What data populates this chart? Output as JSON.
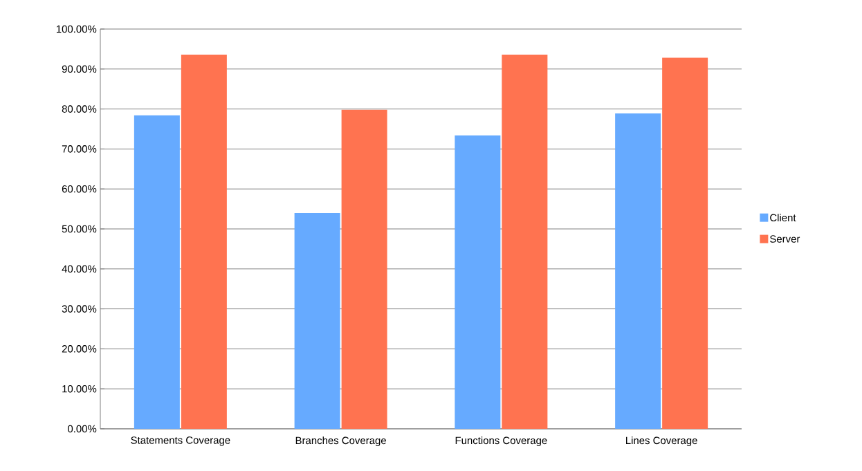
{
  "chart_data": {
    "type": "bar",
    "categories": [
      "Statements Coverage",
      "Branches Coverage",
      "Functions Coverage",
      "Lines Coverage"
    ],
    "series": [
      {
        "name": "Client",
        "color": "#66aaff",
        "values": [
          78.4,
          54.0,
          73.4,
          78.9
        ]
      },
      {
        "name": "Server",
        "color": "#ff7350",
        "values": [
          93.6,
          79.8,
          93.6,
          92.8
        ]
      }
    ],
    "ylim": [
      0,
      100
    ],
    "yticks": [
      {
        "value": 0,
        "label": "0.00%"
      },
      {
        "value": 10,
        "label": "10.00%"
      },
      {
        "value": 20,
        "label": "20.00%"
      },
      {
        "value": 30,
        "label": "30.00%"
      },
      {
        "value": 40,
        "label": "40.00%"
      },
      {
        "value": 50,
        "label": "50.00%"
      },
      {
        "value": 60,
        "label": "60.00%"
      },
      {
        "value": 70,
        "label": "70.00%"
      },
      {
        "value": 80,
        "label": "80.00%"
      },
      {
        "value": 90,
        "label": "90.00%"
      },
      {
        "value": 100,
        "label": "100.00%"
      }
    ],
    "grid": "y",
    "legend": "right"
  }
}
